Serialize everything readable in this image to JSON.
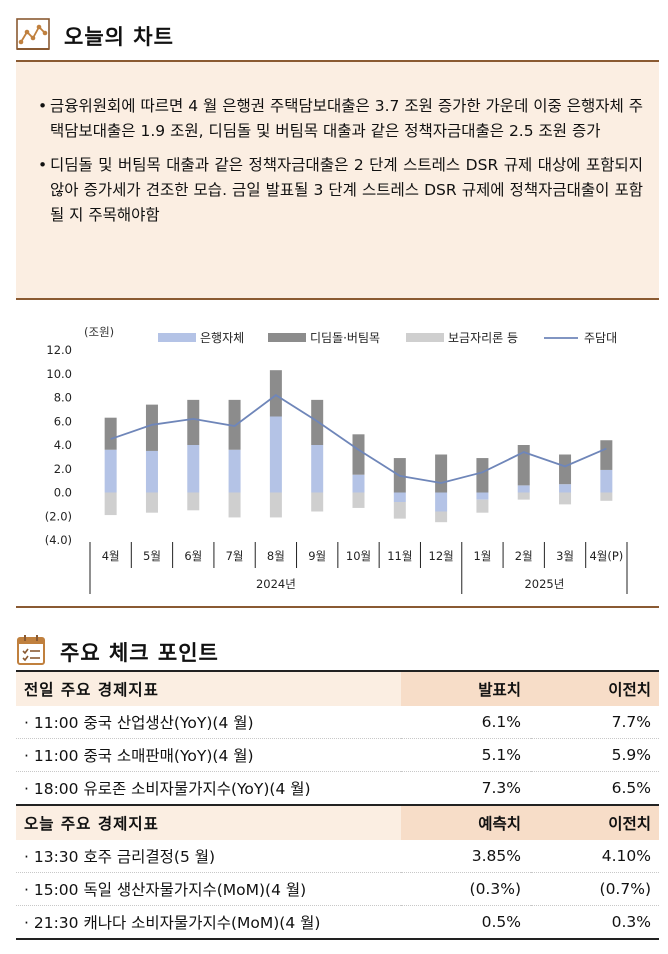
{
  "chart_section": {
    "title": "오늘의 차트",
    "icon": "line-chart-icon",
    "bullets": [
      "금융위원회에 따르면 4 월 은행권 주택담보대출은 3.7 조원 증가한 가운데 이중 은행자체 주택담보대출은 1.9 조원, 디딤돌 및 버팀목 대출과 같은 정책자금대출은 2.5 조원 증가",
      "디딤돌 및 버팀목 대출과 같은 정책자금대출은 2 단계 스트레스 DSR 규제 대상에 포함되지 않아 증가세가 견조한 모습. 금일 발표될 3 단계 스트레스 DSR 규제에 정책자금대출이 포함될 지 주목해야함"
    ]
  },
  "chart_data": {
    "type": "bar",
    "unit_label": "(조원)",
    "categories": [
      "4월",
      "5월",
      "6월",
      "7월",
      "8월",
      "9월",
      "10월",
      "11월",
      "12월",
      "1월",
      "2월",
      "3월",
      "4월(P)"
    ],
    "year_groups": [
      {
        "label": "2024년",
        "start": 0,
        "end": 8
      },
      {
        "label": "2025년",
        "start": 9,
        "end": 12
      }
    ],
    "ylim": [
      -4,
      12
    ],
    "yticks": [
      -4,
      -2,
      0,
      2,
      4,
      6,
      8,
      10,
      12
    ],
    "ytick_labels": [
      "(4.0)",
      "(2.0)",
      "0.0",
      "2.0",
      "4.0",
      "6.0",
      "8.0",
      "10.0",
      "12.0"
    ],
    "series": [
      {
        "name": "은행자체",
        "kind": "stacked-bar",
        "color": "#b4c3e6",
        "values": [
          3.6,
          3.5,
          4.0,
          3.6,
          6.4,
          4.0,
          1.5,
          -0.8,
          -1.6,
          -0.6,
          0.6,
          0.7,
          1.9
        ]
      },
      {
        "name": "디딤돌·버팀목",
        "kind": "stacked-bar",
        "color": "#8c8c8c",
        "values": [
          2.7,
          3.9,
          3.8,
          4.2,
          3.9,
          3.8,
          3.4,
          2.9,
          3.2,
          2.9,
          3.4,
          2.5,
          2.5
        ]
      },
      {
        "name": "보금자리론 등",
        "kind": "stacked-bar",
        "color": "#cfcfcf",
        "values": [
          -1.9,
          -1.7,
          -1.5,
          -2.1,
          -2.1,
          -1.6,
          -1.3,
          -1.4,
          -0.9,
          -1.1,
          -0.6,
          -1.0,
          -0.7
        ]
      },
      {
        "name": "주담대",
        "kind": "line",
        "color": "#6f86b9",
        "values": [
          4.5,
          5.7,
          6.2,
          5.6,
          8.2,
          6.0,
          3.6,
          1.4,
          0.8,
          1.7,
          3.4,
          2.2,
          3.7
        ]
      }
    ]
  },
  "check_section": {
    "title": "주요 체크 포인트",
    "icon": "checklist-icon"
  },
  "prev_indicators": {
    "header": {
      "name": "전일 주요 경제지표",
      "col_a": "발표치",
      "col_b": "이전치"
    },
    "rows": [
      {
        "name": "· 11:00 중국 산업생산(YoY)(4 월)",
        "a": "6.1%",
        "b": "7.7%"
      },
      {
        "name": "· 11:00 중국 소매판매(YoY)(4 월)",
        "a": "5.1%",
        "b": "5.9%"
      },
      {
        "name": "· 18:00 유로존 소비자물가지수(YoY)(4 월)",
        "a": "7.3%",
        "b": "6.5%"
      }
    ]
  },
  "today_indicators": {
    "header": {
      "name": "오늘 주요 경제지표",
      "col_a": "예측치",
      "col_b": "이전치"
    },
    "rows": [
      {
        "name": "· 13:30 호주 금리결정(5 월)",
        "a": "3.85%",
        "b": "4.10%"
      },
      {
        "name": "· 15:00 독일 생산자물가지수(MoM)(4 월)",
        "a": "(0.3%)",
        "b": "(0.7%)"
      },
      {
        "name": "· 21:30 캐나다 소비자물가지수(MoM)(4 월)",
        "a": "0.5%",
        "b": "0.3%"
      }
    ]
  }
}
